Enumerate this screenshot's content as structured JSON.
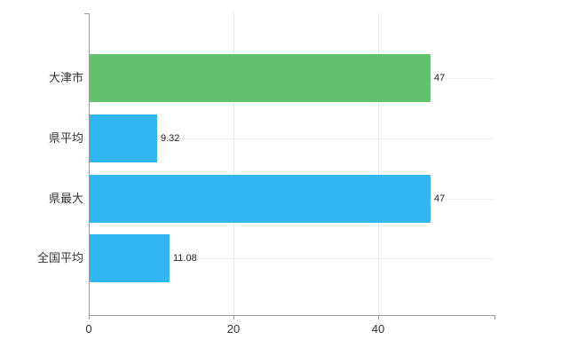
{
  "chart_data": {
    "type": "bar",
    "orientation": "horizontal",
    "title": "",
    "categories": [
      "大津市",
      "県平均",
      "県最大",
      "全国平均"
    ],
    "values": [
      47,
      9.32,
      47,
      11.08
    ],
    "value_labels": [
      "47",
      "9.32",
      "47",
      "11.08"
    ],
    "bar_colors": [
      "#63c16e",
      "#30b6f0",
      "#30b6f0",
      "#30b6f0"
    ],
    "xlim": [
      0,
      56
    ],
    "x_ticks": [
      0,
      20,
      40
    ],
    "x_tick_labels": [
      "0",
      "20",
      "40"
    ],
    "grid": true,
    "legend": false,
    "background": "#ffffff",
    "axis_color": "#9b9b9b",
    "grid_color": "#e6e6e6",
    "row_grid_color": "#f0f0f0"
  }
}
